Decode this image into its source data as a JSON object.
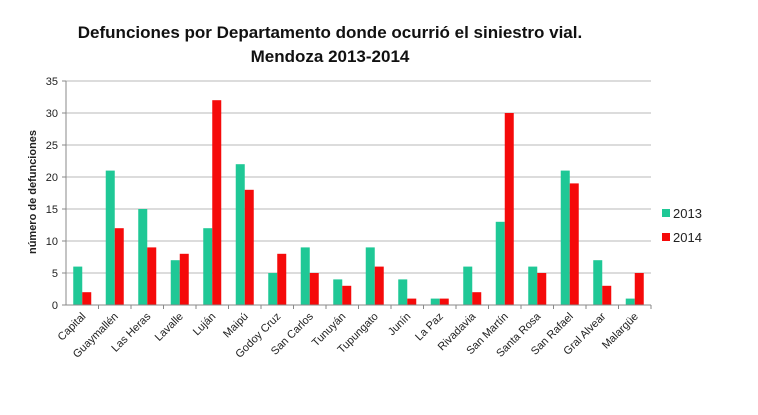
{
  "chart_data": {
    "type": "bar",
    "title": [
      "Defunciones por Departamento donde ocurrió el siniestro vial.",
      "Mendoza 2013-2014"
    ],
    "xlabel": "",
    "ylabel": "número de defunciones",
    "ylim": [
      0,
      35
    ],
    "yticks": [
      0,
      5,
      10,
      15,
      20,
      25,
      30,
      35
    ],
    "grid": true,
    "legend_position": "right",
    "categories": [
      "Capital",
      "Guaymallén",
      "Las Heras",
      "Lavalle",
      "Luján",
      "Maipú",
      "Godoy Cruz",
      "San Carlos",
      "Tunuyán",
      "Tupungato",
      "Junín",
      "La Paz",
      "Rivadavia",
      "San Martín",
      "Santa Rosa",
      "San Rafael",
      "Gral Alvear",
      "Malargüe"
    ],
    "series": [
      {
        "name": "2013",
        "color": "#1fc896",
        "values": [
          6,
          21,
          15,
          7,
          12,
          22,
          5,
          9,
          4,
          9,
          4,
          1,
          6,
          13,
          6,
          21,
          7,
          1
        ]
      },
      {
        "name": "2014",
        "color": "#f50a0a",
        "values": [
          2,
          12,
          9,
          8,
          32,
          18,
          8,
          5,
          3,
          6,
          1,
          1,
          2,
          30,
          5,
          19,
          3,
          5
        ]
      }
    ]
  }
}
